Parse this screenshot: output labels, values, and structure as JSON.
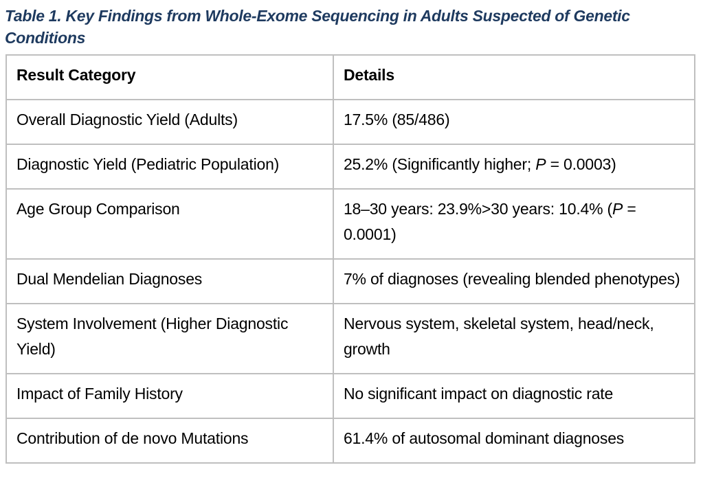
{
  "title": "Table 1. Key Findings from Whole-Exome Sequencing in Adults Suspected of Genetic Conditions",
  "colors": {
    "title_text": "#1e3a5f",
    "table_border": "#bfbfbf",
    "body_text": "#000000",
    "background": "#ffffff"
  },
  "table": {
    "headers": [
      "Result Category",
      "Details"
    ],
    "rows": [
      {
        "category": "Overall Diagnostic Yield (Adults)",
        "details": [
          {
            "text": "17.5% (85/486)",
            "italic": false
          }
        ]
      },
      {
        "category": "Diagnostic Yield (Pediatric Population)",
        "details": [
          {
            "text": "25.2% (Significantly higher; ",
            "italic": false
          },
          {
            "text": "P",
            "italic": true
          },
          {
            "text": " = 0.0003)",
            "italic": false
          }
        ]
      },
      {
        "category": "Age Group Comparison",
        "details": [
          {
            "text": "18–30 years: 23.9%>30 years: 10.4% (",
            "italic": false
          },
          {
            "text": "P",
            "italic": true
          },
          {
            "text": " = 0.0001)",
            "italic": false
          }
        ]
      },
      {
        "category": "Dual Mendelian Diagnoses",
        "details": [
          {
            "text": "7% of diagnoses (revealing blended phenotypes)",
            "italic": false
          }
        ]
      },
      {
        "category": "System Involvement (Higher Diagnostic Yield)",
        "details": [
          {
            "text": "Nervous system, skeletal system, head/neck, growth",
            "italic": false
          }
        ]
      },
      {
        "category": "Impact of Family History",
        "details": [
          {
            "text": "No significant impact on diagnostic rate",
            "italic": false
          }
        ]
      },
      {
        "category": "Contribution of de novo Mutations",
        "details": [
          {
            "text": "61.4% of autosomal dominant diagnoses",
            "italic": false
          }
        ]
      }
    ]
  }
}
